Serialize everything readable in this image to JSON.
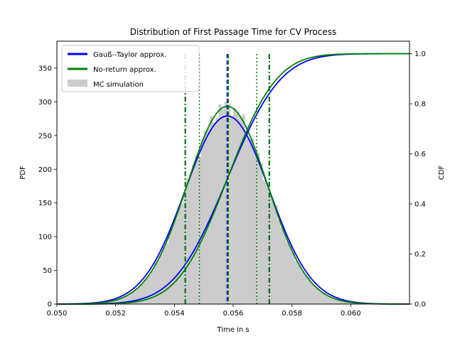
{
  "chart_data": {
    "type": "histogram-line",
    "title": "Distribution of First Passage Time for CV Process",
    "xlabel": "Time in s",
    "ylabel_left": "PDF",
    "ylabel_right": "CDF",
    "xlim": [
      0.05,
      0.062
    ],
    "ylim_left": [
      0,
      390
    ],
    "ylim_right": [
      0,
      1.05
    ],
    "xticks": [
      0.05,
      0.052,
      0.054,
      0.056,
      0.058,
      0.06
    ],
    "xtick_labels": [
      "0.050",
      "0.052",
      "0.054",
      "0.056",
      "0.058",
      "0.060"
    ],
    "yticks_left": [
      0,
      50,
      100,
      150,
      200,
      250,
      300,
      350
    ],
    "ytick_labels_left": [
      "0",
      "50",
      "100",
      "150",
      "200",
      "250",
      "300",
      "350"
    ],
    "yticks_right": [
      0.0,
      0.2,
      0.4,
      0.6,
      0.8,
      1.0
    ],
    "ytick_labels_right": [
      "0.0",
      "0.2",
      "0.4",
      "0.6",
      "0.8",
      "1.0"
    ],
    "legend_position": "top-left",
    "grid": false,
    "series": [
      {
        "name": "Gauß--Taylor approx.",
        "kind": "line",
        "color": "#0000ff",
        "mean": 0.0558,
        "std": 0.00143
      },
      {
        "name": "No-return approx.",
        "kind": "line",
        "color": "#008000",
        "mean": 0.0558,
        "std": 0.00136,
        "skew": 0.3
      },
      {
        "name": "MC simulation",
        "kind": "histogram",
        "color": "#cccccc",
        "bin_width": 0.0001,
        "scale": 1.0
      }
    ],
    "vertical_lines": [
      {
        "x": 0.05437,
        "style": "dashdot",
        "color": "#0000ff"
      },
      {
        "x": 0.05437,
        "style": "dashdot",
        "color": "#008000"
      },
      {
        "x": 0.0558,
        "style": "dashed",
        "color": "#0000ff"
      },
      {
        "x": 0.05583,
        "style": "dashed",
        "color": "#008000"
      },
      {
        "x": 0.05723,
        "style": "dashdot",
        "color": "#0000ff"
      },
      {
        "x": 0.05723,
        "style": "dashdot",
        "color": "#008000"
      },
      {
        "x": 0.05485,
        "style": "dotted",
        "color": "#008000"
      },
      {
        "x": 0.0568,
        "style": "dotted",
        "color": "#008000"
      }
    ],
    "legend_entries": [
      "Gauß--Taylor approx.",
      "No-return approx.",
      "MC simulation"
    ]
  }
}
